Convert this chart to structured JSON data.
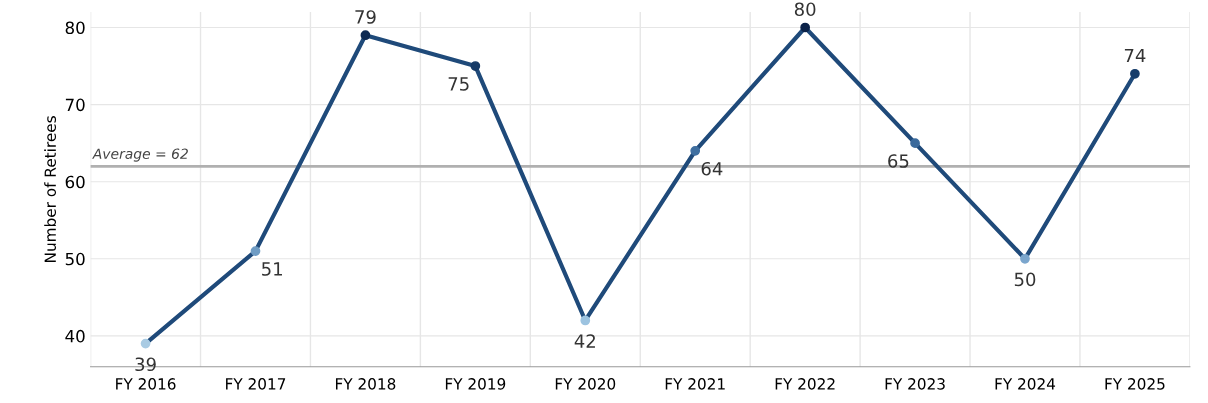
{
  "chart_data": {
    "type": "line",
    "ylabel": "Number of Retirees",
    "categories": [
      "FY 2016",
      "FY 2017",
      "FY 2018",
      "FY 2019",
      "FY 2020",
      "FY 2021",
      "FY 2022",
      "FY 2023",
      "FY 2024",
      "FY 2025"
    ],
    "series": [
      {
        "color": "#1f4a7a",
        "colors": [
          "#a9cbe3",
          "#6f9cc4",
          "#0e2a52",
          "#163a66",
          "#9cc3e0",
          "#3f6fa0",
          "#0b2248",
          "#3a6a9c",
          "#7ba6cd",
          "#183e6b"
        ],
        "values": [
          39,
          51,
          79,
          75,
          42,
          64,
          80,
          65,
          50,
          74
        ]
      }
    ],
    "ylim": [
      36,
      82
    ],
    "yticks": [
      40,
      50,
      60,
      70,
      80
    ],
    "ref_lines": [
      {
        "axis": "y",
        "value": 62,
        "label": "Average = 62",
        "color": "#b0b0b0"
      }
    ],
    "data_labels": true,
    "grid": true,
    "marker": "circle"
  }
}
